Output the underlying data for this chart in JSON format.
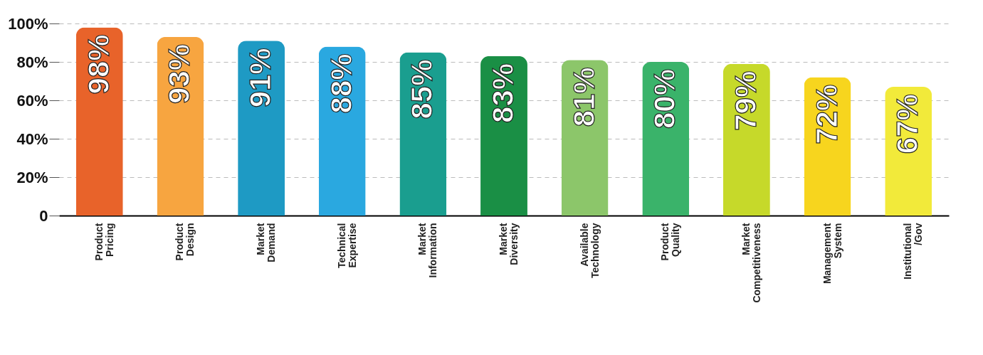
{
  "chart_data": {
    "type": "bar",
    "categories": [
      "Product Pricing",
      "Product Design",
      "Market Demand",
      "Technical Expertise",
      "Market Information",
      "Market Diversity",
      "Available Technology",
      "Product Quality",
      "Market Competitiveness",
      "Management System",
      "Institutional /Gov"
    ],
    "values": [
      98,
      93,
      91,
      88,
      85,
      83,
      81,
      80,
      79,
      72,
      67
    ],
    "value_labels": [
      "98%",
      "93%",
      "91%",
      "88%",
      "85%",
      "83%",
      "81%",
      "80%",
      "79%",
      "72%",
      "67%"
    ],
    "colors": [
      "#e8632a",
      "#f7a540",
      "#1e9ac4",
      "#2aa8e0",
      "#1a9e8f",
      "#1a8f45",
      "#8cc66a",
      "#3ab36a",
      "#c6d92a",
      "#f7d51e",
      "#f2ea3a"
    ],
    "ylim": [
      0,
      100
    ],
    "yticks": [
      {
        "value": 0,
        "label": "0"
      },
      {
        "value": 20,
        "label": "20%"
      },
      {
        "value": 40,
        "label": "40%"
      },
      {
        "value": 60,
        "label": "60%"
      },
      {
        "value": 80,
        "label": "80%"
      },
      {
        "value": 100,
        "label": "100%"
      }
    ],
    "grid": "y"
  }
}
